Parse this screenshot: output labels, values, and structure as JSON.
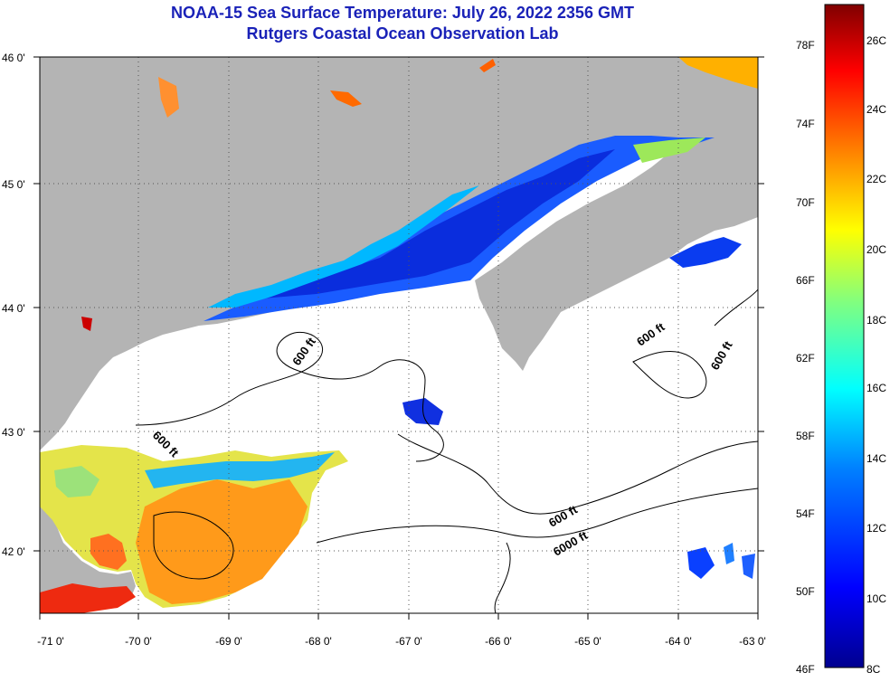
{
  "title_line1": "NOAA-15 Sea Surface Temperature:  July 26, 2022 2356 GMT",
  "title_line2": "Rutgers Coastal Ocean Observation Lab",
  "map": {
    "lon_labels": [
      "-71 0'",
      "-70 0'",
      "-69 0'",
      "-68 0'",
      "-67 0'",
      "-66 0'",
      "-65 0'",
      "-64 0'",
      "-63 0'"
    ],
    "lat_labels": [
      "46 0'",
      "45 0'",
      "44 0'",
      "43 0'",
      "42 0'"
    ],
    "lon_range": [
      -71,
      -63
    ],
    "lat_range": [
      41.5,
      46
    ],
    "land_color": "#b4b4b4",
    "cloud_color": "#ffffff",
    "contour_labels": [
      "600 ft",
      "600 ft",
      "600 ft",
      "600 ft",
      "600 ft",
      "6000 ft"
    ]
  },
  "colorbar": {
    "fahrenheit_labels": [
      "78F",
      "74F",
      "70F",
      "66F",
      "62F",
      "58F",
      "54F",
      "50F",
      "46F"
    ],
    "celsius_labels": [
      "26C",
      "24C",
      "22C",
      "20C",
      "18C",
      "16C",
      "14C",
      "12C",
      "10C",
      "8C"
    ],
    "range_c": [
      8,
      27
    ],
    "colors": [
      "#00008f",
      "#0000ff",
      "#0080ff",
      "#00ffff",
      "#80ff80",
      "#ffff00",
      "#ff8000",
      "#ff0000",
      "#800000"
    ]
  }
}
